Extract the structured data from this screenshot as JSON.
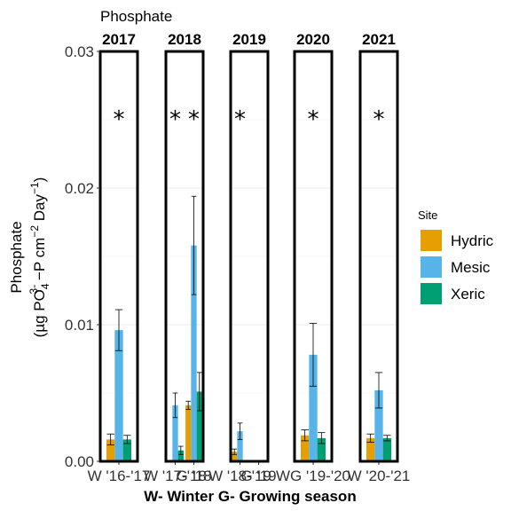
{
  "chart_data": {
    "type": "bar",
    "title": "Phosphate",
    "ylabel_line1": "Phosphate",
    "ylabel_line2_parts": [
      "(µg PO",
      "4",
      "3-",
      " −P cm",
      "−2",
      " Day",
      "−1",
      ")"
    ],
    "xlabel": "W- Winter G- Growing season",
    "ylim": [
      0,
      0.03
    ],
    "yticks": [
      0.0,
      0.01,
      0.02,
      0.03
    ],
    "ytick_labels": [
      "0.00",
      "0.01",
      "0.02",
      "0.03"
    ],
    "grid": true,
    "legend": {
      "title": "Site",
      "placement": "right",
      "entries": [
        {
          "name": "Hydric",
          "color": "#E69F00"
        },
        {
          "name": "Mesic",
          "color": "#56B4E9"
        },
        {
          "name": "Xeric",
          "color": "#009E73"
        }
      ]
    },
    "panels": [
      {
        "label": "2017",
        "significance": "*",
        "categories": [
          "W '16-'17"
        ],
        "series": [
          {
            "name": "Hydric",
            "values": [
              0.0016
            ],
            "err": [
              0.0004
            ]
          },
          {
            "name": "Mesic",
            "values": [
              0.0096
            ],
            "err": [
              0.0015
            ]
          },
          {
            "name": "Xeric",
            "values": [
              0.0016
            ],
            "err": [
              0.0003
            ]
          }
        ]
      },
      {
        "label": "2018",
        "significance": "* *",
        "categories": [
          "W '17-'18",
          "G '18"
        ],
        "series": [
          {
            "name": "Hydric",
            "values": [
              0,
              0.0041
            ],
            "err": [
              0,
              0.0003
            ]
          },
          {
            "name": "Mesic",
            "values": [
              0.0041,
              0.0158
            ],
            "err": [
              0.0009,
              0.0036
            ]
          },
          {
            "name": "Xeric",
            "values": [
              0.0008,
              0.0051
            ],
            "err": [
              0.0003,
              0.0014
            ]
          }
        ]
      },
      {
        "label": "2019",
        "significance": "*",
        "categories": [
          "W '18-'19",
          "G '19"
        ],
        "series": [
          {
            "name": "Hydric",
            "values": [
              0.0007,
              0.0001
            ],
            "err": [
              0.0002,
              0.0
            ]
          },
          {
            "name": "Mesic",
            "values": [
              0.0022,
              0.0001
            ],
            "err": [
              0.0006,
              0.0
            ]
          },
          {
            "name": "Xeric",
            "values": [
              0.0001,
              0.0001
            ],
            "err": [
              0.0,
              0.0
            ]
          }
        ]
      },
      {
        "label": "2020",
        "significance": "*",
        "categories": [
          "WG '19-'20"
        ],
        "series": [
          {
            "name": "Hydric",
            "values": [
              0.0019
            ],
            "err": [
              0.0004
            ]
          },
          {
            "name": "Mesic",
            "values": [
              0.0078
            ],
            "err": [
              0.0023
            ]
          },
          {
            "name": "Xeric",
            "values": [
              0.0017
            ],
            "err": [
              0.0004
            ]
          }
        ]
      },
      {
        "label": "2021",
        "significance": "*",
        "categories": [
          "W '20-'21"
        ],
        "series": [
          {
            "name": "Hydric",
            "values": [
              0.0017
            ],
            "err": [
              0.0003
            ]
          },
          {
            "name": "Mesic",
            "values": [
              0.0052
            ],
            "err": [
              0.0013
            ]
          },
          {
            "name": "Xeric",
            "values": [
              0.0017
            ],
            "err": [
              0.0002
            ]
          }
        ]
      }
    ]
  }
}
